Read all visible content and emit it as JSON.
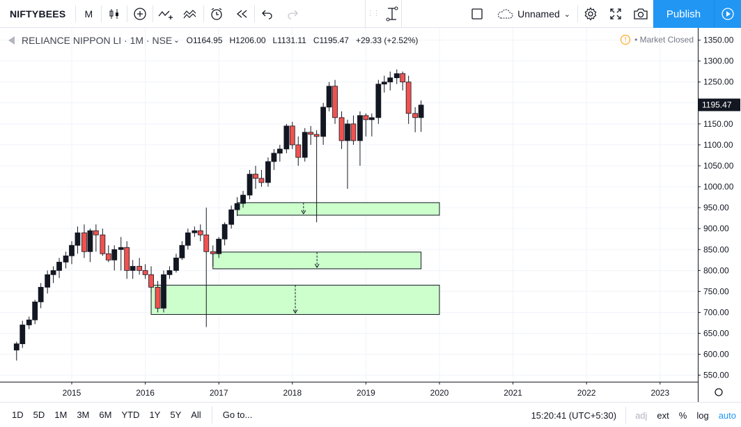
{
  "toolbar": {
    "symbol": "NIFTYBEES",
    "interval": "M",
    "layout_name": "Unnamed",
    "publish_label": "Publish",
    "icons": [
      "candles-icon",
      "indicator-plus-icon",
      "compare-icon",
      "templates-icon",
      "alert-icon",
      "replay-icon",
      "undo-icon",
      "redo-icon",
      "drawing-tool-icon",
      "layout-icon",
      "cloud-icon",
      "settings-icon",
      "fullscreen-icon",
      "snapshot-icon",
      "play-icon"
    ]
  },
  "legend": {
    "title": "RELIANCE NIPPON LI · 1M · NSE",
    "open": "O1164.95",
    "high": "H1206.00",
    "low": "L1131.11",
    "close": "C1195.47",
    "change": "+29.33 (+2.52%)",
    "market_status": "Market Closed"
  },
  "price_axis": {
    "labels": [
      "1350.00",
      "1300.00",
      "1250.00",
      "1200.00",
      "1150.00",
      "1100.00",
      "1050.00",
      "1000.00",
      "950.00",
      "900.00",
      "850.00",
      "800.00",
      "750.00",
      "700.00",
      "650.00",
      "600.00",
      "550.00"
    ],
    "last_price": "1195.47"
  },
  "time_axis": {
    "labels": [
      "2015",
      "2016",
      "2017",
      "2018",
      "2019",
      "2020",
      "2021",
      "2022",
      "2023"
    ]
  },
  "bottombar": {
    "ranges": [
      "1D",
      "5D",
      "1M",
      "3M",
      "6M",
      "YTD",
      "1Y",
      "5Y",
      "All"
    ],
    "goto": "Go to...",
    "clock": "15:20:41 (UTC+5:30)",
    "adj": "adj",
    "ext": "ext",
    "pct": "%",
    "log": "log",
    "auto": "auto"
  },
  "colors": {
    "up": "#131722",
    "down": "#ef5350",
    "zone_fill": "#ccffcc",
    "accent": "#2196f3"
  },
  "chart_data": {
    "type": "candlestick",
    "y_range": [
      530,
      1360
    ],
    "candles": [
      [
        2014.25,
        610,
        630,
        585,
        625
      ],
      [
        2014.33,
        625,
        680,
        615,
        670
      ],
      [
        2014.42,
        670,
        690,
        660,
        682
      ],
      [
        2014.5,
        682,
        730,
        672,
        725
      ],
      [
        2014.58,
        725,
        770,
        710,
        760
      ],
      [
        2014.67,
        760,
        800,
        745,
        790
      ],
      [
        2014.75,
        790,
        810,
        770,
        800
      ],
      [
        2014.83,
        800,
        830,
        782,
        820
      ],
      [
        2014.92,
        820,
        845,
        805,
        835
      ],
      [
        2015.0,
        835,
        870,
        815,
        860
      ],
      [
        2015.08,
        860,
        905,
        840,
        890
      ],
      [
        2015.17,
        890,
        910,
        830,
        845
      ],
      [
        2015.25,
        845,
        900,
        820,
        895
      ],
      [
        2015.33,
        895,
        910,
        845,
        885
      ],
      [
        2015.42,
        885,
        900,
        835,
        840
      ],
      [
        2015.5,
        840,
        860,
        820,
        825
      ],
      [
        2015.58,
        825,
        860,
        800,
        850
      ],
      [
        2015.67,
        850,
        880,
        800,
        855
      ],
      [
        2015.75,
        855,
        870,
        780,
        800
      ],
      [
        2015.83,
        800,
        825,
        780,
        810
      ],
      [
        2015.92,
        810,
        830,
        790,
        800
      ],
      [
        2016.0,
        800,
        815,
        780,
        790
      ],
      [
        2016.08,
        790,
        810,
        745,
        760
      ],
      [
        2016.17,
        760,
        775,
        700,
        710
      ],
      [
        2016.25,
        710,
        800,
        700,
        790
      ],
      [
        2016.33,
        790,
        810,
        780,
        800
      ],
      [
        2016.42,
        800,
        840,
        795,
        830
      ],
      [
        2016.5,
        830,
        870,
        825,
        860
      ],
      [
        2016.58,
        860,
        900,
        850,
        890
      ],
      [
        2016.67,
        890,
        905,
        880,
        895
      ],
      [
        2016.75,
        895,
        910,
        870,
        885
      ],
      [
        2016.83,
        885,
        950,
        665,
        845
      ],
      [
        2016.92,
        845,
        860,
        810,
        840
      ],
      [
        2017.0,
        840,
        880,
        830,
        875
      ],
      [
        2017.08,
        875,
        915,
        860,
        910
      ],
      [
        2017.17,
        910,
        955,
        900,
        945
      ],
      [
        2017.25,
        945,
        975,
        930,
        960
      ],
      [
        2017.33,
        960,
        990,
        950,
        980
      ],
      [
        2017.42,
        980,
        1040,
        970,
        1030
      ],
      [
        2017.5,
        1030,
        1050,
        995,
        1020
      ],
      [
        2017.58,
        1020,
        1040,
        1000,
        1010
      ],
      [
        2017.67,
        1010,
        1070,
        1000,
        1060
      ],
      [
        2017.75,
        1060,
        1090,
        1040,
        1080
      ],
      [
        2017.83,
        1080,
        1100,
        1060,
        1090
      ],
      [
        2017.92,
        1090,
        1150,
        1080,
        1145
      ],
      [
        2018.0,
        1145,
        1155,
        1090,
        1100
      ],
      [
        2018.08,
        1100,
        1120,
        1050,
        1070
      ],
      [
        2018.17,
        1070,
        1140,
        1060,
        1130
      ],
      [
        2018.25,
        1130,
        1145,
        1100,
        1125
      ],
      [
        2018.33,
        1125,
        1135,
        915,
        1120
      ],
      [
        2018.42,
        1120,
        1200,
        1100,
        1190
      ],
      [
        2018.5,
        1190,
        1250,
        1180,
        1240
      ],
      [
        2018.58,
        1240,
        1255,
        1150,
        1165
      ],
      [
        2018.67,
        1165,
        1180,
        1090,
        1110
      ],
      [
        2018.75,
        1110,
        1160,
        995,
        1150
      ],
      [
        2018.83,
        1150,
        1170,
        1100,
        1110
      ],
      [
        2018.92,
        1110,
        1180,
        1050,
        1170
      ],
      [
        2019.0,
        1170,
        1175,
        1120,
        1160
      ],
      [
        2019.08,
        1160,
        1175,
        1120,
        1165
      ],
      [
        2019.17,
        1165,
        1255,
        1150,
        1245
      ],
      [
        2019.25,
        1245,
        1265,
        1225,
        1250
      ],
      [
        2019.33,
        1250,
        1275,
        1230,
        1260
      ],
      [
        2019.42,
        1260,
        1280,
        1245,
        1270
      ],
      [
        2019.5,
        1270,
        1275,
        1230,
        1250
      ],
      [
        2019.58,
        1250,
        1265,
        1150,
        1175
      ],
      [
        2019.67,
        1175,
        1190,
        1130,
        1165
      ],
      [
        2019.75,
        1165,
        1206,
        1131,
        1195
      ]
    ],
    "zones": [
      {
        "top": 962,
        "bottom": 932,
        "from": 2017.25,
        "to": 2020.0
      },
      {
        "top": 844,
        "bottom": 804,
        "from": 2016.92,
        "to": 2019.75
      },
      {
        "top": 765,
        "bottom": 695,
        "from": 2016.08,
        "to": 2020.0
      }
    ]
  }
}
